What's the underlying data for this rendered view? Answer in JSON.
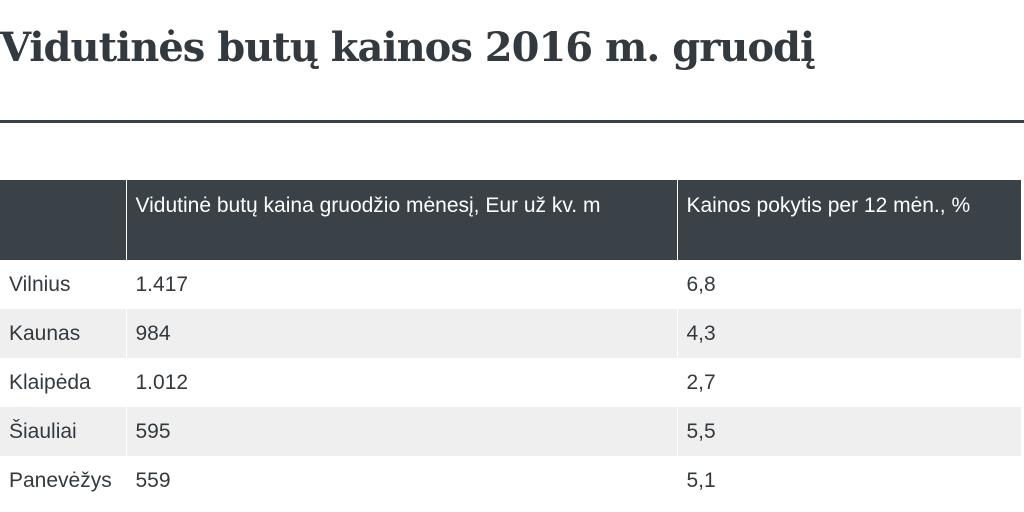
{
  "title": "Vidutinės butų kainos 2016 m. gruodį",
  "colors": {
    "header_bg": "#3a4147",
    "header_text": "#ffffff",
    "stripe": "#efefef",
    "text": "#333a3f"
  },
  "chart_data": {
    "type": "table",
    "title": "Vidutinės butų kainos 2016 m. gruodį",
    "columns": [
      "",
      "Vidutinė butų kaina gruodžio mėnesį, Eur už kv. m",
      "Kainos pokytis per 12 mėn., %"
    ],
    "rows": [
      [
        "Vilnius",
        "1.417",
        "6,8"
      ],
      [
        "Kaunas",
        "984",
        "4,3"
      ],
      [
        "Klaipėda",
        "1.012",
        "2,7"
      ],
      [
        "Šiauliai",
        "595",
        "5,5"
      ],
      [
        "Panevėžys",
        "559",
        "5,1"
      ]
    ]
  }
}
